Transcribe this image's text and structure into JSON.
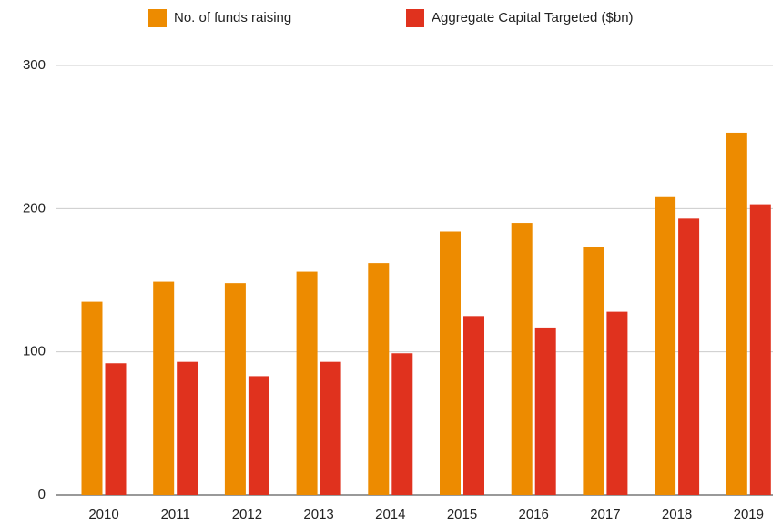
{
  "chart_data": {
    "type": "bar",
    "categories": [
      "2010",
      "2011",
      "2012",
      "2013",
      "2014",
      "2015",
      "2016",
      "2017",
      "2018",
      "2019"
    ],
    "series": [
      {
        "name": "No. of funds raising",
        "color": "#ed8b00",
        "values": [
          135,
          149,
          148,
          156,
          162,
          184,
          190,
          173,
          208,
          253
        ]
      },
      {
        "name": "Aggregate Capital Targeted ($bn)",
        "color": "#e0321e",
        "values": [
          92,
          93,
          83,
          93,
          99,
          125,
          117,
          128,
          193,
          203
        ]
      }
    ],
    "ylim": [
      0,
      300
    ],
    "yticks": [
      0,
      100,
      200,
      300
    ],
    "grid": true,
    "legend": "top"
  }
}
